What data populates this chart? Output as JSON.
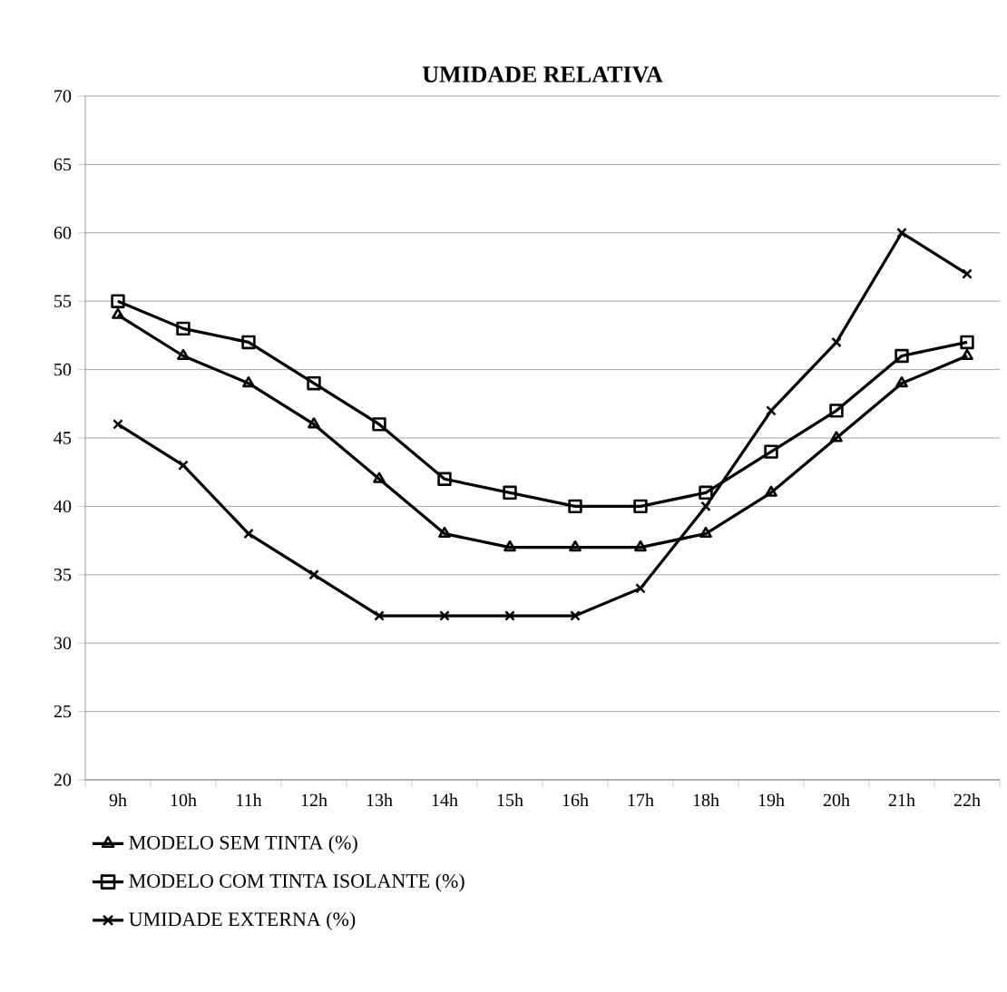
{
  "chart_data": {
    "type": "line",
    "title": "UMIDADE RELATIVA",
    "categories": [
      "9h",
      "10h",
      "11h",
      "12h",
      "13h",
      "14h",
      "15h",
      "16h",
      "17h",
      "18h",
      "19h",
      "20h",
      "21h",
      "22h"
    ],
    "series": [
      {
        "name": "MODELO SEM TINTA (%)",
        "color": "#000000",
        "marker": "triangle",
        "values": [
          54,
          51,
          49,
          46,
          42,
          38,
          37,
          37,
          37,
          38,
          41,
          45,
          49,
          51
        ]
      },
      {
        "name": "MODELO COM TINTA ISOLANTE (%)",
        "color": "#000000",
        "marker": "square",
        "values": [
          55,
          53,
          52,
          49,
          46,
          42,
          41,
          40,
          40,
          41,
          44,
          47,
          51,
          52
        ]
      },
      {
        "name": "UMIDADE EXTERNA (%)",
        "color": "#000000",
        "marker": "cross",
        "values": [
          46,
          43,
          38,
          35,
          32,
          32,
          32,
          32,
          34,
          40,
          47,
          52,
          60,
          57
        ]
      }
    ],
    "ylim": [
      20,
      70
    ],
    "yticks": [
      20,
      25,
      30,
      35,
      40,
      45,
      50,
      55,
      60,
      65,
      70
    ],
    "grid": "y",
    "legend": "bottom",
    "line_style": "solid"
  }
}
